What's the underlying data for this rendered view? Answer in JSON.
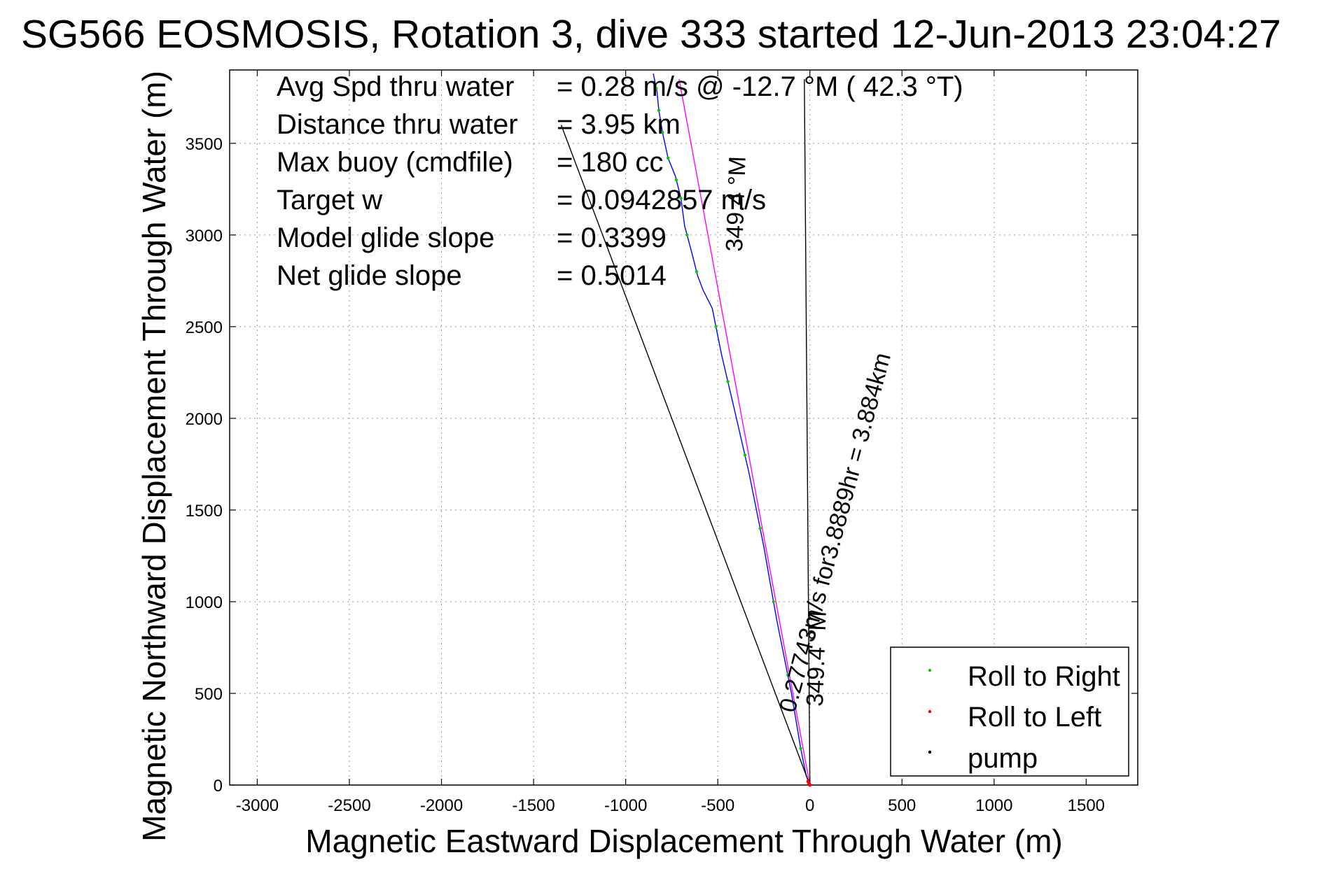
{
  "chart_data": {
    "type": "line",
    "title": "SG566 EOSMOSIS, Rotation 3, dive 333 started 12-Jun-2013 23:04:27",
    "xlabel": "Magnetic Eastward Displacement Through Water (m)",
    "ylabel": "Magnetic Northward Displacement Through Water (m)",
    "xlim": [
      -3150,
      1780
    ],
    "ylim": [
      0,
      3900
    ],
    "xticks": [
      -3000,
      -2500,
      -2000,
      -1500,
      -1000,
      -500,
      0,
      500,
      1000,
      1500
    ],
    "yticks": [
      0,
      500,
      1000,
      1500,
      2000,
      2500,
      3000,
      3500
    ],
    "grid": true,
    "legend_position": "bottom-right",
    "info_lines": [
      {
        "label": "Avg Spd thru water",
        "value": "=  0.28 m/s @ -12.7 °M ( 42.3 °T)"
      },
      {
        "label": "Distance thru water",
        "value": "=  3.95 km"
      },
      {
        "label": "Max buoy (cmdfile)",
        "value": "= 180 cc"
      },
      {
        "label": "Target w",
        "value": "= 0.0942857 m/s"
      },
      {
        "label": "Model glide slope",
        "value": "= 0.3399"
      },
      {
        "label": "Net glide slope",
        "value": "= 0.5014"
      }
    ],
    "annotations": {
      "long_line_label": "0.27743m/s for3.8889hr = 3.884km",
      "long_line_heading": "349.4 °M",
      "upper_heading": "349.4 °M"
    },
    "series": [
      {
        "name": "track",
        "color": "#0000ff",
        "x": [
          0,
          -20,
          -50,
          -100,
          -180,
          -250,
          -330,
          -410,
          -480,
          -530,
          -580,
          -610,
          -640,
          -680,
          -700,
          -730,
          -770,
          -800,
          -820,
          -830,
          -850
        ],
        "y": [
          0,
          50,
          200,
          500,
          900,
          1300,
          1700,
          2050,
          2350,
          2600,
          2700,
          2780,
          2900,
          3050,
          3200,
          3320,
          3420,
          3560,
          3680,
          3780,
          3880
        ]
      },
      {
        "name": "heading line",
        "color": "#ff00ff",
        "x": [
          0,
          -710
        ],
        "y": [
          0,
          3850
        ]
      },
      {
        "name": "net line",
        "color": "#000000",
        "x": [
          0,
          -1350
        ],
        "y": [
          0,
          3600
        ]
      },
      {
        "name": "vertical line",
        "color": "#000000",
        "x": [
          0,
          -30
        ],
        "y": [
          0,
          3850
        ]
      }
    ],
    "legend": [
      {
        "label": "Roll to Right",
        "color": "#00cc00"
      },
      {
        "label": "Roll to Left",
        "color": "#ff0000"
      },
      {
        "label": "pump",
        "color": "#000000"
      }
    ],
    "markers": {
      "green_y": [
        200,
        600,
        1000,
        1400,
        1800,
        2200,
        2500,
        2800,
        3000,
        3200,
        3300,
        3420,
        3560,
        3680,
        3800
      ],
      "red_points": [
        [
          0,
          0
        ],
        [
          -5,
          10
        ],
        [
          -10,
          20
        ]
      ]
    }
  }
}
